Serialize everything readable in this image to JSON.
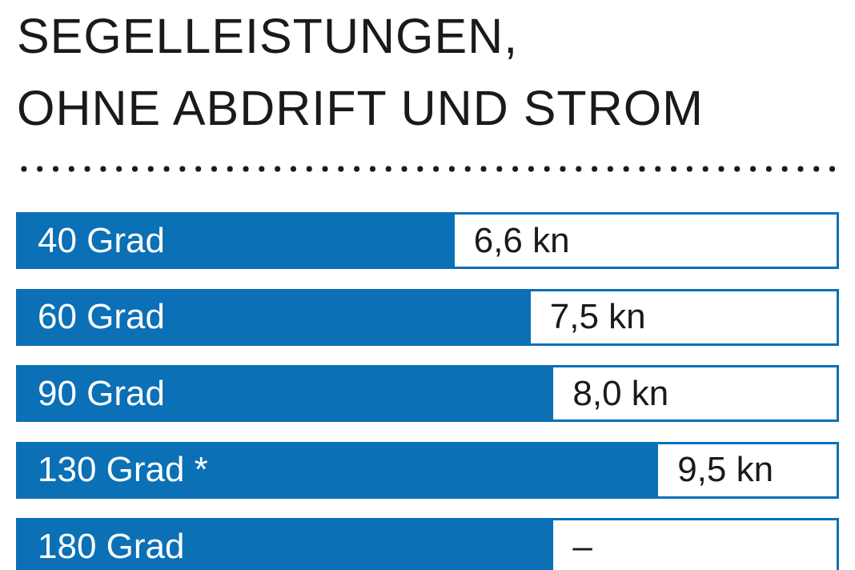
{
  "header": {
    "title_line1": "SEGELLEISTUNGEN,",
    "title_line2": "OHNE ABDRIFT UND STROM"
  },
  "chart_data": {
    "type": "bar",
    "orientation": "horizontal",
    "title": "SEGELLEISTUNGEN, OHNE ABDRIFT UND STROM",
    "categories": [
      "40 Grad",
      "60 Grad",
      "90 Grad",
      "130 Grad *",
      "180 Grad"
    ],
    "values": [
      6.6,
      7.5,
      8.0,
      9.5,
      null
    ],
    "value_labels": [
      "6,6 kn",
      "7,5 kn",
      "8,0 kn",
      "9,5 kn",
      "–"
    ],
    "unit": "kn",
    "bar_widths_pct": [
      53.3,
      62.6,
      65.4,
      78.2,
      65.4
    ],
    "legend": false,
    "gridlines": false,
    "colors": {
      "bar_fill": "#0b70b6",
      "bar_border": "#0b70b6",
      "category_label": "#ffffff",
      "value_text": "#1a1a1a",
      "divider_dots": "#1a1a1a",
      "background": "#ffffff"
    }
  }
}
